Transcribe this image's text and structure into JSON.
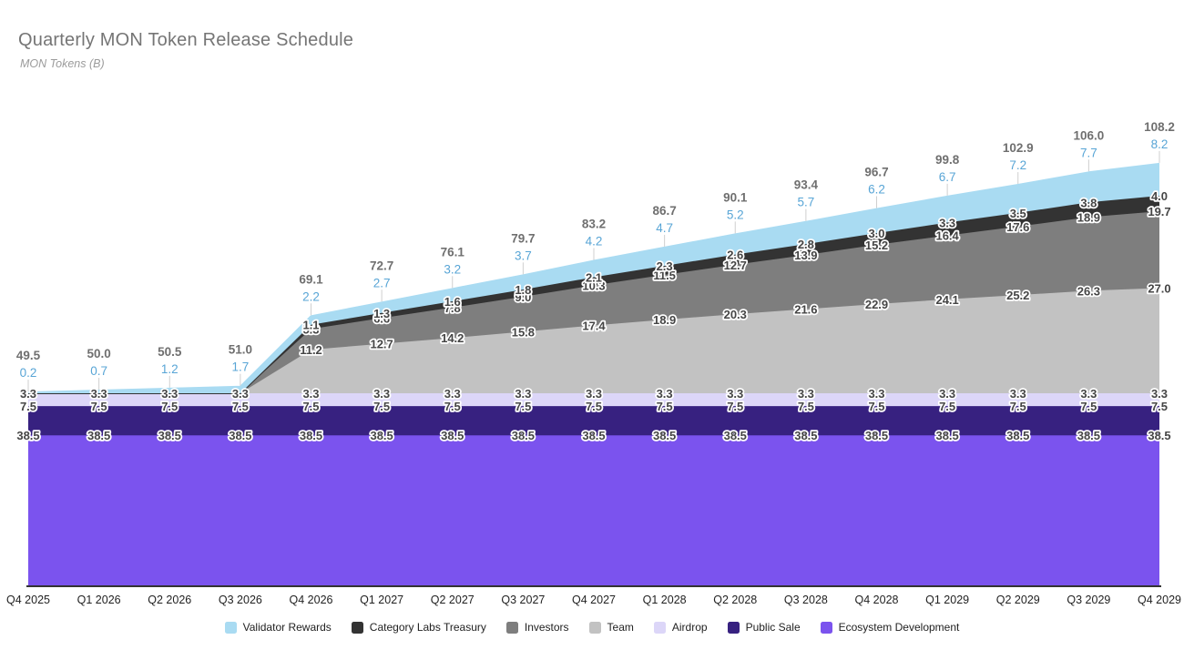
{
  "header": {
    "title": "Quarterly MON Token Release Schedule",
    "subtitle": "MON Tokens (B)"
  },
  "chart_data": {
    "type": "area",
    "stacked": true,
    "title": "Quarterly MON Token Release Schedule",
    "ylabel": "MON Tokens (B)",
    "grid": false,
    "legend_position": "bottom",
    "ylim": [
      0,
      115
    ],
    "categories": [
      "Q4 2025",
      "Q1 2026",
      "Q2 2026",
      "Q3 2026",
      "Q4 2026",
      "Q1 2027",
      "Q2 2027",
      "Q3 2027",
      "Q4 2027",
      "Q1 2028",
      "Q2 2028",
      "Q3 2028",
      "Q4 2028",
      "Q1 2029",
      "Q2 2029",
      "Q3 2029",
      "Q4 2029"
    ],
    "totals": [
      49.5,
      50.0,
      50.5,
      51.0,
      69.1,
      72.7,
      76.1,
      79.7,
      83.2,
      86.7,
      90.1,
      93.4,
      96.7,
      99.8,
      102.9,
      106.0,
      108.2
    ],
    "series": [
      {
        "name": "Validator Rewards",
        "color": "#a9dbf2",
        "label_color": "#58a5d6",
        "values": [
          0.2,
          0.7,
          1.2,
          1.7,
          2.2,
          2.7,
          3.2,
          3.7,
          4.2,
          4.7,
          5.2,
          5.7,
          6.2,
          6.7,
          7.2,
          7.7,
          8.2
        ]
      },
      {
        "name": "Category Labs Treasury",
        "color": "#333333",
        "values": [
          0,
          0,
          0,
          0,
          1.1,
          1.3,
          1.6,
          1.8,
          2.1,
          2.3,
          2.6,
          2.8,
          3.0,
          3.3,
          3.5,
          3.8,
          4.0
        ]
      },
      {
        "name": "Investors",
        "color": "#7e7e7e",
        "values": [
          0,
          0,
          0,
          0,
          5.3,
          6.6,
          7.8,
          9.0,
          10.3,
          11.5,
          12.7,
          13.9,
          15.2,
          16.4,
          17.6,
          18.9,
          19.7
        ]
      },
      {
        "name": "Team",
        "color": "#c2c2c2",
        "values": [
          0,
          0,
          0,
          0,
          11.2,
          12.7,
          14.2,
          15.8,
          17.4,
          18.9,
          20.3,
          21.6,
          22.9,
          24.1,
          25.2,
          26.3,
          27.0
        ]
      },
      {
        "name": "Airdrop",
        "color": "#dcd6f8",
        "values": [
          3.3,
          3.3,
          3.3,
          3.3,
          3.3,
          3.3,
          3.3,
          3.3,
          3.3,
          3.3,
          3.3,
          3.3,
          3.3,
          3.3,
          3.3,
          3.3,
          3.3
        ]
      },
      {
        "name": "Public Sale",
        "color": "#372180",
        "values": [
          7.5,
          7.5,
          7.5,
          7.5,
          7.5,
          7.5,
          7.5,
          7.5,
          7.5,
          7.5,
          7.5,
          7.5,
          7.5,
          7.5,
          7.5,
          7.5,
          7.5
        ]
      },
      {
        "name": "Ecosystem Development",
        "color": "#7b53ee",
        "values": [
          38.5,
          38.5,
          38.5,
          38.5,
          38.5,
          38.5,
          38.5,
          38.5,
          38.5,
          38.5,
          38.5,
          38.5,
          38.5,
          38.5,
          38.5,
          38.5,
          38.5
        ]
      }
    ],
    "label_style": {
      "total_label_color": "#6f6f6f",
      "band_label_color": "#454545",
      "band_label_halo": "#ffffff",
      "axis_label_color": "#222222",
      "axis_line_color": "#333333",
      "leader_line_color": "#cfcfcf"
    }
  }
}
